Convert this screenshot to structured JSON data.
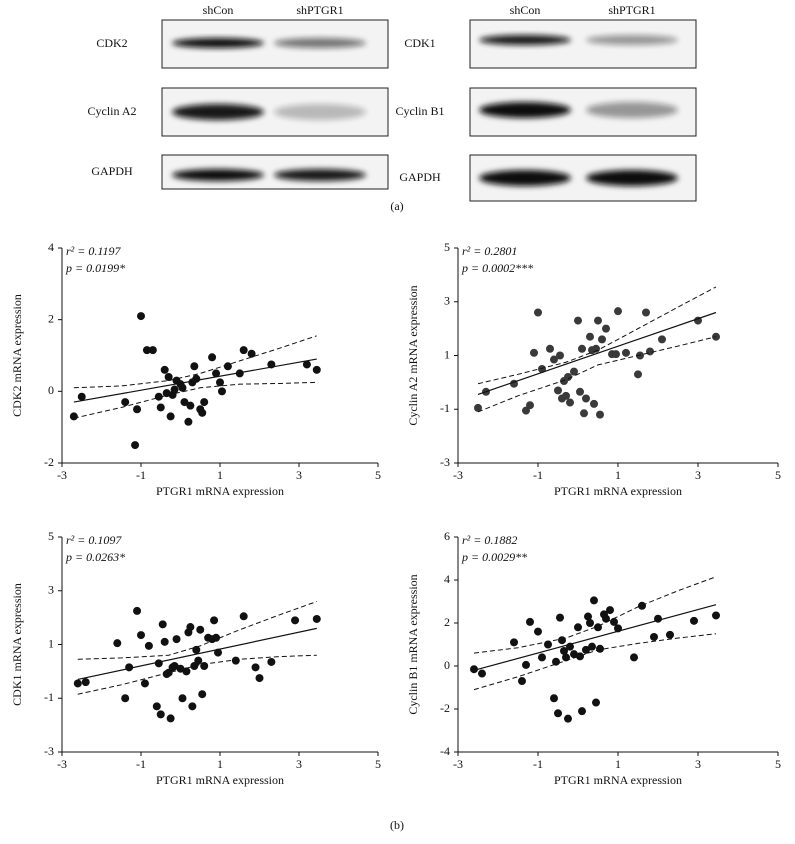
{
  "blots": {
    "columns_left": [
      "shCon",
      "shPTGR1"
    ],
    "columns_right": [
      "shCon",
      "shPTGR1"
    ],
    "rows_left": [
      "CDK2",
      "Cyclin A2",
      "GAPDH"
    ],
    "rows_right": [
      "CDK1",
      "Cyclin B1",
      "GAPDH"
    ]
  },
  "panel_labels": [
    "(a)",
    "(b)"
  ],
  "chart_data": [
    {
      "type": "scatter",
      "xlabel": "PTGR1 mRNA expression",
      "ylabel": "CDK2 mRNA expression",
      "annotations": [
        "r² = 0.1197",
        "p = 0.0199*"
      ],
      "color": "#111111",
      "xlim": [
        -3,
        5
      ],
      "xticks": [
        -3,
        -1,
        1,
        3,
        5
      ],
      "ylim": [
        -2,
        4
      ],
      "yticks": [
        -2,
        0,
        2,
        4
      ],
      "x": [
        -2.7,
        -2.5,
        -1.4,
        -1.1,
        -1.0,
        -0.85,
        -0.7,
        -1.15,
        -0.5,
        -0.4,
        -0.35,
        -0.3,
        -0.25,
        -0.2,
        -0.15,
        -0.1,
        0.0,
        0.05,
        0.1,
        0.2,
        0.3,
        0.35,
        0.4,
        0.5,
        0.55,
        0.6,
        0.8,
        0.9,
        1.0,
        1.05,
        1.2,
        1.5,
        1.6,
        1.8,
        2.3,
        3.2,
        3.45,
        -0.55,
        0.25
      ],
      "values": [
        -0.7,
        -0.15,
        -0.3,
        -0.5,
        2.1,
        1.15,
        1.15,
        -1.5,
        -0.45,
        0.6,
        -0.05,
        0.4,
        -0.7,
        -0.1,
        0.05,
        0.3,
        0.2,
        0.1,
        -0.3,
        -0.85,
        0.25,
        0.7,
        0.35,
        -0.5,
        -0.6,
        -0.3,
        0.95,
        0.5,
        0.25,
        0.0,
        0.7,
        0.5,
        1.15,
        1.05,
        0.75,
        0.75,
        0.6,
        -0.15,
        -0.4
      ],
      "fit": {
        "x": [
          -2.7,
          3.45
        ],
        "y": [
          -0.3,
          0.9
        ]
      },
      "ci": {
        "x": [
          -2.7,
          -1.5,
          -0.3,
          0.5,
          1.5,
          2.5,
          3.45
        ],
        "upper": [
          0.1,
          0.15,
          0.3,
          0.5,
          0.85,
          1.2,
          1.55
        ],
        "lower": [
          -0.75,
          -0.45,
          -0.1,
          0.1,
          0.2,
          0.22,
          0.25
        ]
      }
    },
    {
      "type": "scatter",
      "xlabel": "PTGR1 mRNA expression",
      "ylabel": "Cyclin A2 mRNA expression",
      "annotations": [
        "r² = 0.2801",
        "p = 0.0002***"
      ],
      "color": "#3a3a3a",
      "xlim": [
        -3,
        5
      ],
      "xticks": [
        -3,
        -1,
        1,
        3,
        5
      ],
      "ylim": [
        -3,
        5
      ],
      "yticks": [
        -3,
        -1,
        1,
        3,
        5
      ],
      "x": [
        -2.5,
        -2.3,
        -1.6,
        -1.3,
        -1.2,
        -1.1,
        -1.0,
        -0.9,
        -0.7,
        -0.6,
        -0.5,
        -0.45,
        -0.4,
        -0.35,
        -0.3,
        -0.25,
        -0.2,
        -0.1,
        0.0,
        0.05,
        0.1,
        0.15,
        0.2,
        0.3,
        0.35,
        0.4,
        0.45,
        0.5,
        0.55,
        0.6,
        0.7,
        0.85,
        0.95,
        1.0,
        1.2,
        1.5,
        1.55,
        1.7,
        1.8,
        2.1,
        3.0,
        3.45
      ],
      "values": [
        -0.95,
        -0.35,
        -0.05,
        -1.05,
        -0.85,
        1.1,
        2.6,
        0.5,
        1.25,
        0.85,
        -0.3,
        1.0,
        -0.6,
        0.05,
        -0.5,
        0.2,
        -0.75,
        0.4,
        2.3,
        -0.35,
        1.25,
        -1.15,
        -0.6,
        1.7,
        1.2,
        -0.8,
        1.25,
        2.3,
        -1.2,
        1.6,
        2.0,
        1.05,
        1.05,
        2.65,
        1.1,
        0.3,
        1.0,
        2.6,
        1.15,
        1.6,
        2.3,
        1.7
      ],
      "fit": {
        "x": [
          -2.5,
          3.45
        ],
        "y": [
          -0.45,
          2.6
        ]
      },
      "ci": {
        "x": [
          -2.5,
          -1.5,
          -0.3,
          0.5,
          1.5,
          2.5,
          3.45
        ],
        "upper": [
          -0.05,
          0.3,
          0.75,
          1.2,
          2.0,
          2.8,
          3.55
        ],
        "lower": [
          -1.1,
          -0.5,
          0.1,
          0.65,
          1.0,
          1.35,
          1.7
        ]
      }
    },
    {
      "type": "scatter",
      "xlabel": "PTGR1 mRNA expression",
      "ylabel": "CDK1 mRNA expression",
      "annotations": [
        "r² = 0.1097",
        "p = 0.0263*"
      ],
      "color": "#111111",
      "xlim": [
        -3,
        5
      ],
      "xticks": [
        -3,
        -1,
        1,
        3,
        5
      ],
      "ylim": [
        -3,
        5
      ],
      "yticks": [
        -3,
        -1,
        1,
        3,
        5
      ],
      "x": [
        -2.6,
        -2.4,
        -1.6,
        -1.4,
        -1.3,
        -1.1,
        -1.0,
        -0.9,
        -0.8,
        -0.6,
        -0.55,
        -0.5,
        -0.45,
        -0.4,
        -0.35,
        -0.3,
        -0.25,
        -0.2,
        -0.15,
        -0.1,
        0.0,
        0.05,
        0.15,
        0.2,
        0.25,
        0.3,
        0.35,
        0.4,
        0.45,
        0.5,
        0.55,
        0.6,
        0.7,
        0.8,
        0.85,
        0.9,
        0.95,
        1.4,
        1.6,
        1.9,
        2.0,
        2.3,
        2.9,
        3.45
      ],
      "values": [
        -0.45,
        -0.4,
        1.05,
        -1.0,
        0.15,
        2.25,
        1.35,
        -0.45,
        0.95,
        -1.3,
        0.3,
        -1.6,
        1.75,
        1.1,
        -0.1,
        -0.05,
        -1.75,
        0.15,
        0.2,
        1.2,
        0.1,
        -1.0,
        0.0,
        1.45,
        1.65,
        -1.3,
        0.2,
        0.8,
        0.4,
        1.55,
        -0.85,
        0.2,
        1.25,
        1.2,
        1.9,
        1.25,
        0.7,
        0.4,
        2.05,
        0.15,
        -0.25,
        0.35,
        1.9,
        1.95
      ],
      "fit": {
        "x": [
          -2.6,
          3.45
        ],
        "y": [
          -0.3,
          1.6
        ]
      },
      "ci": {
        "x": [
          -2.6,
          -1.5,
          -0.3,
          0.5,
          1.5,
          2.5,
          3.45
        ],
        "upper": [
          0.45,
          0.5,
          0.6,
          0.95,
          1.55,
          2.1,
          2.6
        ],
        "lower": [
          -0.85,
          -0.5,
          -0.05,
          0.25,
          0.45,
          0.55,
          0.6
        ]
      }
    },
    {
      "type": "scatter",
      "xlabel": "PTGR1 mRNA expression",
      "ylabel": "Cyclin B1 mRNA expression",
      "annotations": [
        "r² = 0.1882",
        "p = 0.0029**"
      ],
      "color": "#111111",
      "xlim": [
        -3,
        5
      ],
      "xticks": [
        -3,
        -1,
        1,
        3,
        5
      ],
      "ylim": [
        -4,
        6
      ],
      "yticks": [
        -4,
        -2,
        0,
        2,
        4,
        6
      ],
      "x": [
        -2.6,
        -2.4,
        -1.6,
        -1.4,
        -1.3,
        -1.2,
        -1.0,
        -0.9,
        -0.75,
        -0.6,
        -0.55,
        -0.5,
        -0.45,
        -0.4,
        -0.35,
        -0.3,
        -0.25,
        -0.2,
        -0.1,
        0.0,
        0.05,
        0.1,
        0.2,
        0.25,
        0.3,
        0.35,
        0.4,
        0.45,
        0.5,
        0.55,
        0.65,
        0.7,
        0.8,
        0.9,
        1.0,
        1.4,
        1.6,
        1.9,
        2.0,
        2.3,
        2.9,
        3.45
      ],
      "values": [
        -0.15,
        -0.35,
        1.1,
        -0.7,
        0.05,
        2.05,
        1.6,
        0.4,
        1.0,
        -1.5,
        0.2,
        -2.2,
        2.25,
        1.2,
        0.7,
        0.4,
        -2.45,
        0.9,
        0.55,
        1.8,
        0.45,
        -2.1,
        0.75,
        2.3,
        2.0,
        0.9,
        3.05,
        -1.7,
        1.8,
        0.8,
        2.4,
        2.2,
        2.6,
        2.05,
        1.75,
        0.4,
        2.8,
        1.35,
        2.2,
        1.45,
        2.1,
        2.35
      ],
      "fit": {
        "x": [
          -2.6,
          3.45
        ],
        "y": [
          -0.2,
          2.85
        ]
      },
      "ci": {
        "x": [
          -2.6,
          -1.5,
          -0.3,
          0.5,
          1.5,
          2.5,
          3.45
        ],
        "upper": [
          0.6,
          0.85,
          1.3,
          1.85,
          2.75,
          3.5,
          4.15
        ],
        "lower": [
          -1.1,
          -0.5,
          0.25,
          0.75,
          1.05,
          1.3,
          1.5
        ]
      }
    }
  ]
}
